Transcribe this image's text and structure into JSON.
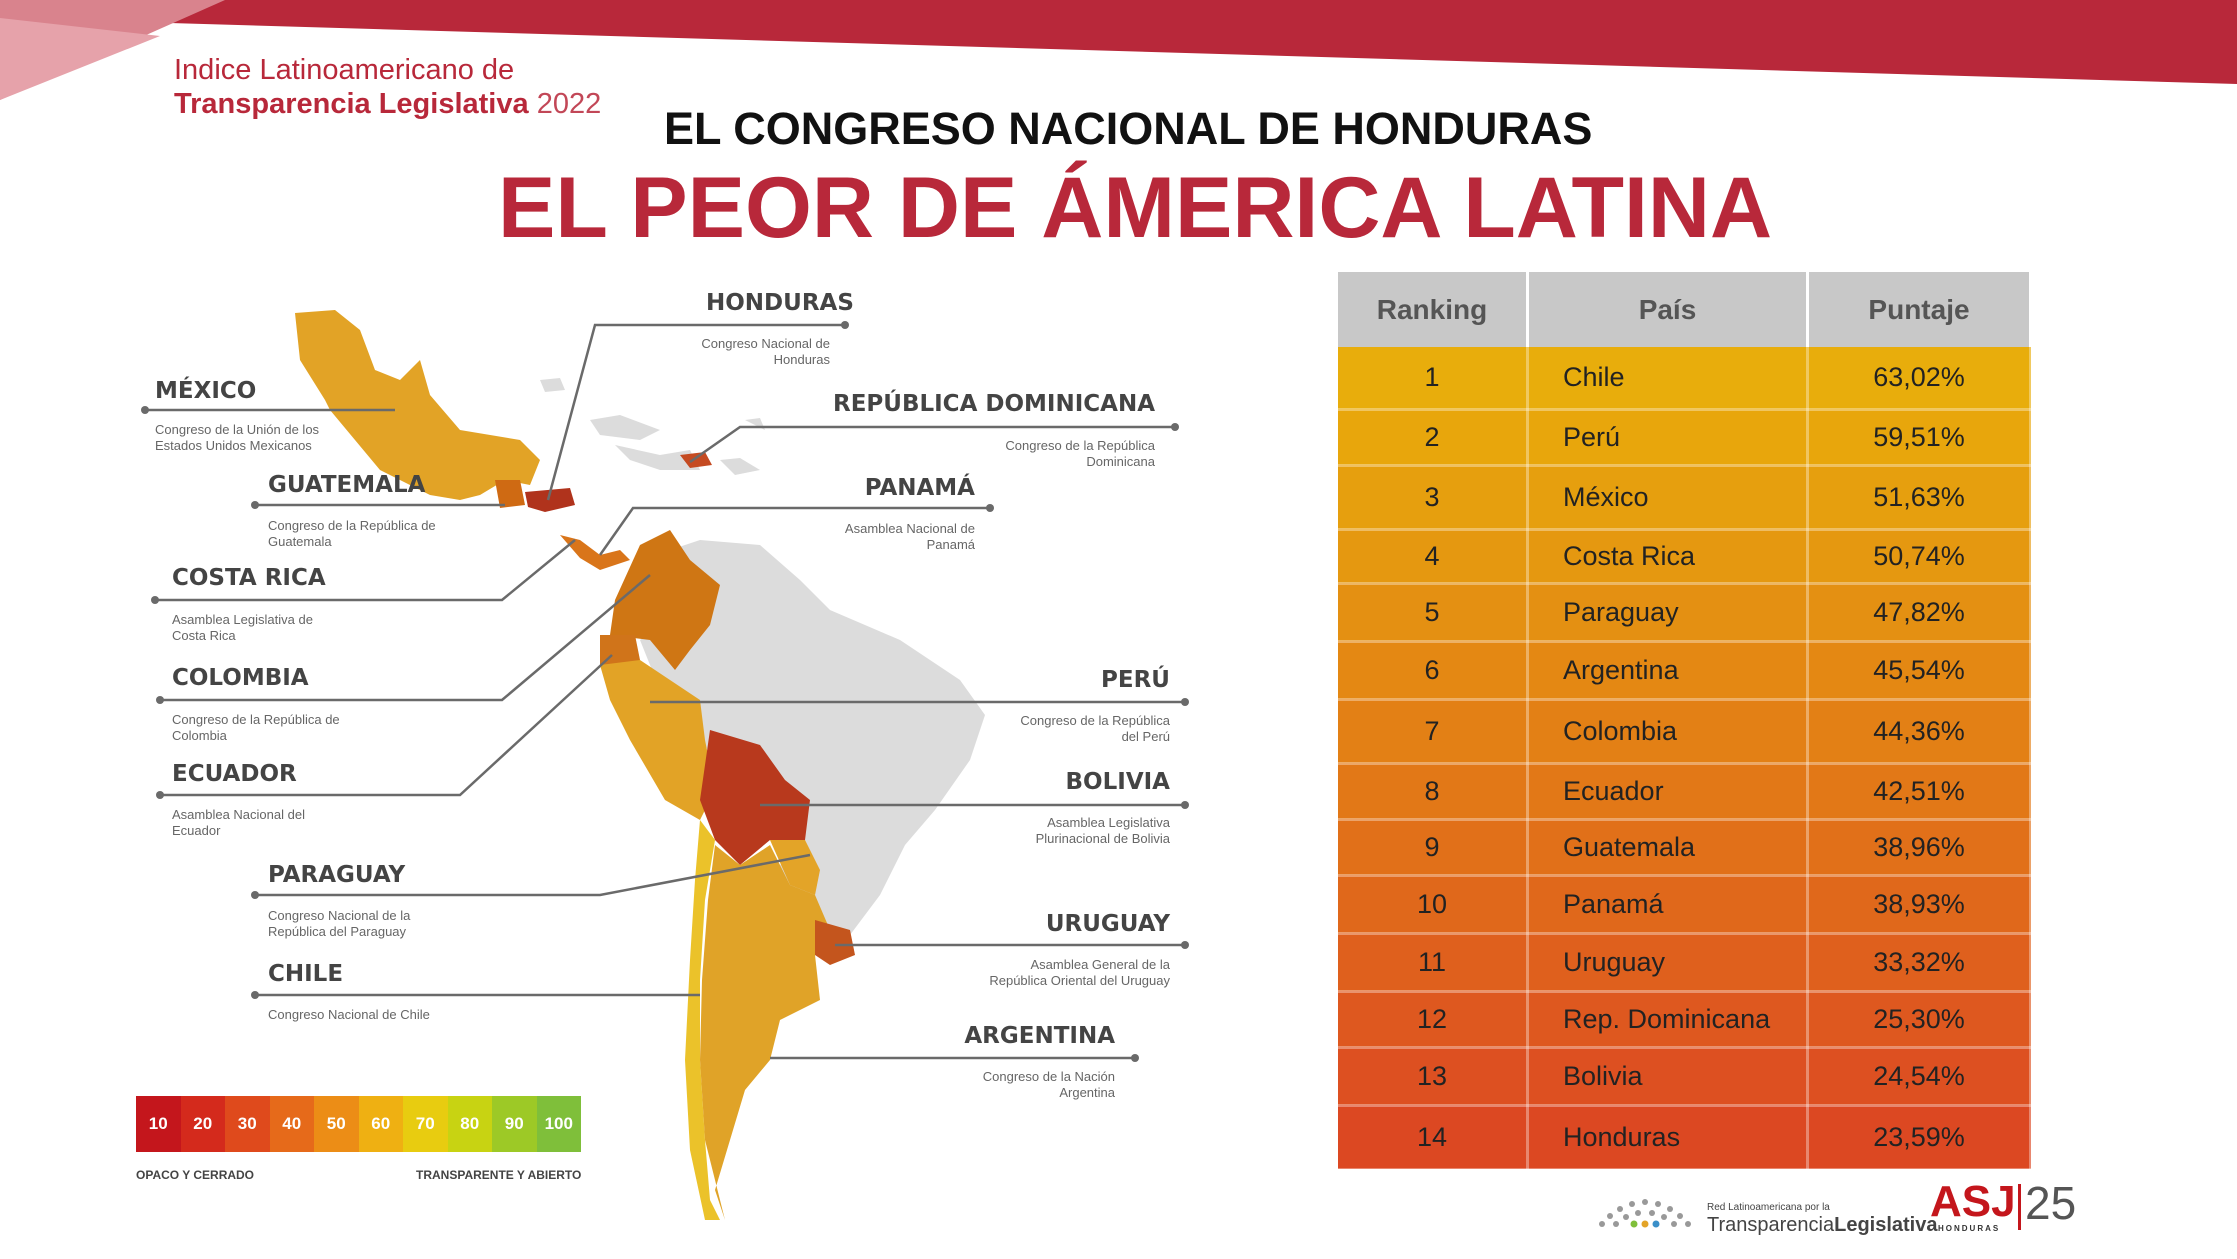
{
  "brand": {
    "line1": "Indice Latinoamericano de",
    "line2": "Transparencia Legislativa",
    "year": "2022"
  },
  "header": {
    "subtitle": "EL CONGRESO NACIONAL DE HONDURAS",
    "title": "EL PEOR DE ÁMERICA LATINA"
  },
  "table": {
    "headers": [
      "Ranking",
      "País",
      "Puntaje"
    ],
    "rows": [
      {
        "rank": "1",
        "country": "Chile",
        "score": "63,02%",
        "color": "#e8ad0c"
      },
      {
        "rank": "2",
        "country": "Perú",
        "score": "59,51%",
        "color": "#e8a60c"
      },
      {
        "rank": "3",
        "country": "México",
        "score": "51,63%",
        "color": "#e69f0e"
      },
      {
        "rank": "4",
        "country": "Costa Rica",
        "score": "50,74%",
        "color": "#e59810"
      },
      {
        "rank": "5",
        "country": "Paraguay",
        "score": "47,82%",
        "color": "#e49012"
      },
      {
        "rank": "6",
        "country": "Argentina",
        "score": "45,54%",
        "color": "#e48813"
      },
      {
        "rank": "7",
        "country": "Colombia",
        "score": "44,36%",
        "color": "#e38015"
      },
      {
        "rank": "8",
        "country": "Ecuador",
        "score": "42,51%",
        "color": "#e27817"
      },
      {
        "rank": "9",
        "country": "Guatemala",
        "score": "38,96%",
        "color": "#e17019"
      },
      {
        "rank": "10",
        "country": "Panamá",
        "score": "38,93%",
        "color": "#e0681b"
      },
      {
        "rank": "11",
        "country": "Uruguay",
        "score": "33,32%",
        "color": "#df601d"
      },
      {
        "rank": "12",
        "country": "Rep. Dominicana",
        "score": "25,30%",
        "color": "#de581f"
      },
      {
        "rank": "13",
        "country": "Bolivia",
        "score": "24,54%",
        "color": "#dd5021"
      },
      {
        "rank": "14",
        "country": "Honduras",
        "score": "23,59%",
        "color": "#dc4822"
      }
    ]
  },
  "map_labels": {
    "honduras": {
      "name": "HONDURAS",
      "inst": [
        "Congreso Nacional de",
        "Honduras"
      ]
    },
    "mexico": {
      "name": "MÉXICO",
      "inst": [
        "Congreso de la Unión de los",
        "Estados Unidos Mexicanos"
      ]
    },
    "rep_dom": {
      "name": "REPÚBLICA DOMINICANA",
      "inst": [
        "Congreso de la República",
        "Dominicana"
      ]
    },
    "guatemala": {
      "name": "GUATEMALA",
      "inst": [
        "Congreso de la República de",
        "Guatemala"
      ]
    },
    "panama": {
      "name": "PANAMÁ",
      "inst": [
        "Asamblea Nacional de",
        "Panamá"
      ]
    },
    "costa_rica": {
      "name": "COSTA RICA",
      "inst": [
        "Asamblea Legislativa de",
        "Costa Rica"
      ]
    },
    "colombia": {
      "name": "COLOMBIA",
      "inst": [
        "Congreso de la República de",
        "Colombia"
      ]
    },
    "peru": {
      "name": "PERÚ",
      "inst": [
        "Congreso de la República",
        "del Perú"
      ]
    },
    "ecuador": {
      "name": "ECUADOR",
      "inst": [
        "Asamblea Nacional del",
        "Ecuador"
      ]
    },
    "bolivia": {
      "name": "BOLIVIA",
      "inst": [
        "Asamblea Legislativa",
        "Plurinacional de Bolivia"
      ]
    },
    "paraguay": {
      "name": "PARAGUAY",
      "inst": [
        "Congreso Nacional de la",
        "República del Paraguay"
      ]
    },
    "uruguay": {
      "name": "URUGUAY",
      "inst": [
        "Asamblea General de la",
        "República Oriental del Uruguay"
      ]
    },
    "chile": {
      "name": "CHILE",
      "inst": [
        "Congreso Nacional de Chile"
      ]
    },
    "argentina": {
      "name": "ARGENTINA",
      "inst": [
        "Congreso de la Nación",
        "Argentina"
      ]
    }
  },
  "legend": {
    "values": [
      "10",
      "20",
      "30",
      "40",
      "50",
      "60",
      "70",
      "80",
      "90",
      "100"
    ],
    "colors": [
      "#c4161c",
      "#d42a1c",
      "#df4a1c",
      "#e66a1a",
      "#ec8d16",
      "#efb012",
      "#e8cc10",
      "#c8d312",
      "#9dc926",
      "#7fbf3a"
    ],
    "low": "OPACO Y CERRADO",
    "high": "TRANSPARENTE Y ABIERTO"
  },
  "footer": {
    "relat_small": "Red Latinoamericana por la",
    "relat_big": "Transparencia",
    "relat_bold": "Legislativa",
    "asj": "ASJ",
    "asj_sub": "HONDURAS",
    "asj_years": "25"
  }
}
